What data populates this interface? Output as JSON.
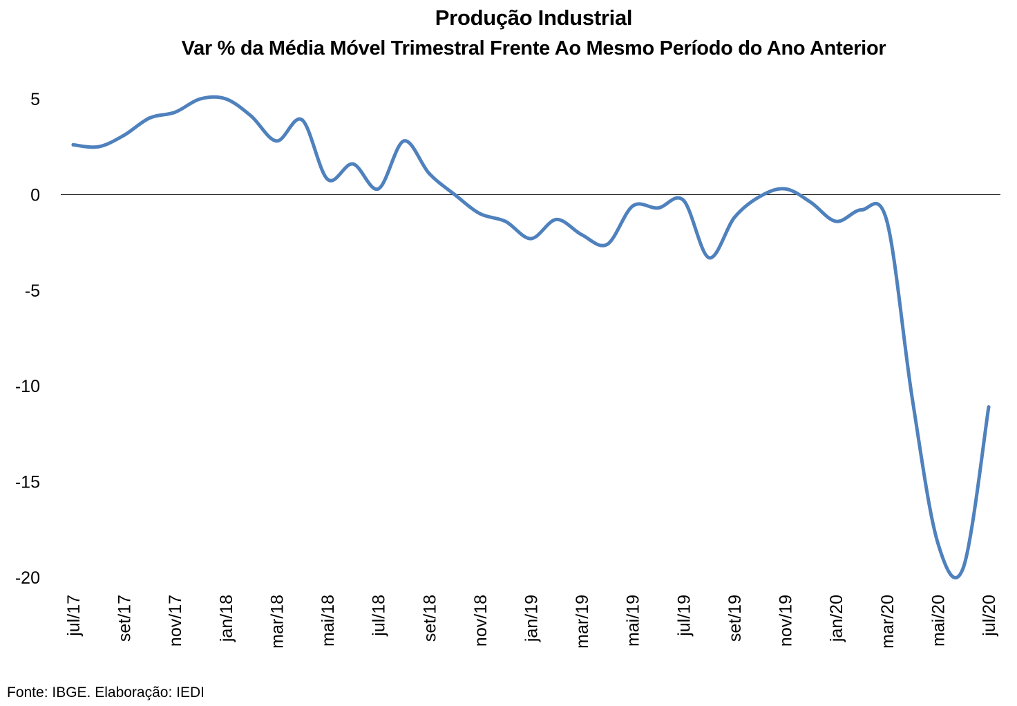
{
  "chart_data": {
    "type": "line",
    "title": "Produção Industrial",
    "subtitle": "Var % da Média Móvel Trimestral Frente Ao Mesmo Período do Ano Anterior",
    "xlabel": "",
    "ylabel": "",
    "ylim": [
      -20,
      5
    ],
    "yticks": [
      5,
      0,
      -5,
      -10,
      -15,
      -20
    ],
    "grid": false,
    "legend": "none",
    "line_color": "#4f81bd",
    "x": [
      "jul/17",
      "ago/17",
      "set/17",
      "out/17",
      "nov/17",
      "dez/17",
      "jan/18",
      "fev/18",
      "mar/18",
      "abr/18",
      "mai/18",
      "jun/18",
      "jul/18",
      "ago/18",
      "set/18",
      "out/18",
      "nov/18",
      "dez/18",
      "jan/19",
      "fev/19",
      "mar/19",
      "abr/19",
      "mai/19",
      "jun/19",
      "jul/19",
      "ago/19",
      "set/19",
      "out/19",
      "nov/19",
      "dez/19",
      "jan/20",
      "fev/20",
      "mar/20",
      "abr/20",
      "mai/20",
      "jun/20",
      "jul/20"
    ],
    "xtick_labels": [
      "jul/17",
      "set/17",
      "nov/17",
      "jan/18",
      "mar/18",
      "mai/18",
      "jul/18",
      "set/18",
      "nov/18",
      "jan/19",
      "mar/19",
      "mai/19",
      "jul/19",
      "set/19",
      "nov/19",
      "jan/20",
      "mar/20",
      "mai/20",
      "jul/20"
    ],
    "series": [
      {
        "values": [
          2.6,
          2.5,
          3.1,
          4.0,
          4.3,
          5.0,
          5.0,
          4.1,
          2.8,
          3.9,
          0.8,
          1.6,
          0.3,
          2.8,
          1.1,
          0.0,
          -1.0,
          -1.4,
          -2.3,
          -1.3,
          -2.1,
          -2.6,
          -0.6,
          -0.7,
          -0.3,
          -3.3,
          -1.2,
          -0.1,
          0.3,
          -0.4,
          -1.4,
          -0.8,
          -1.4,
          -10.7,
          -18.2,
          -19.5,
          -11.1
        ]
      }
    ]
  },
  "source_text": "Fonte: IBGE. Elaboração: IEDI"
}
